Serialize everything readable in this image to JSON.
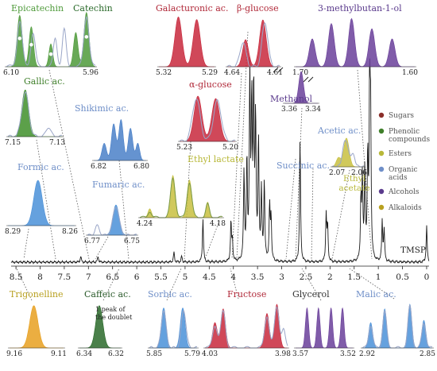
{
  "chart_data": {
    "type": "line",
    "title": "",
    "xlabel": "",
    "ylabel": "",
    "xlim": [
      8.6,
      -0.05
    ],
    "reversed_x": true,
    "x_ticks": [
      "8.5",
      "8",
      "7.5",
      "7",
      "6.5",
      "6",
      "5.5",
      "5",
      "4.5",
      "4",
      "3.5",
      "3",
      "2.5",
      "2",
      "1.5",
      "1",
      "0.5",
      "0"
    ],
    "x_tick_values": [
      8.5,
      8,
      7.5,
      7,
      6.5,
      6,
      5.5,
      5,
      4.5,
      4,
      3.5,
      3,
      2.5,
      2,
      1.5,
      1,
      0.5,
      0
    ],
    "reference_label": "TMSP",
    "legend": {
      "placement": "right",
      "items": [
        {
          "name": "Sugars",
          "color": "#8b2e2a"
        },
        {
          "name": "Phenolic compounds",
          "color": "#3f7f2a"
        },
        {
          "name": "Esters",
          "color": "#b8b838"
        },
        {
          "name": "Organic acids",
          "color": "#6f8fc8"
        },
        {
          "name": "Alcohols",
          "color": "#5a3a8c"
        },
        {
          "name": "Alkaloids",
          "color": "#b8a020"
        }
      ]
    },
    "main_peaks": [
      {
        "ppm": 4.63,
        "h": 0.22
      },
      {
        "ppm": 4.05,
        "h": 0.2
      },
      {
        "ppm": 4.02,
        "h": 0.1
      },
      {
        "ppm": 3.78,
        "h": 0.45
      },
      {
        "ppm": 3.72,
        "h": 0.5
      },
      {
        "ppm": 3.66,
        "h": 0.92
      },
      {
        "ppm": 3.62,
        "h": 0.78
      },
      {
        "ppm": 3.58,
        "h": 0.85
      },
      {
        "ppm": 3.54,
        "h": 0.7
      },
      {
        "ppm": 3.48,
        "h": 0.6
      },
      {
        "ppm": 3.42,
        "h": 0.35
      },
      {
        "ppm": 3.36,
        "h": 0.4
      },
      {
        "ppm": 3.25,
        "h": 0.28
      },
      {
        "ppm": 3.22,
        "h": 0.22
      },
      {
        "ppm": 2.62,
        "h": 0.62
      },
      {
        "ppm": 2.08,
        "h": 0.24
      },
      {
        "ppm": 2.05,
        "h": 0.18
      },
      {
        "ppm": 1.36,
        "h": 0.3
      },
      {
        "ppm": 1.33,
        "h": 0.4
      },
      {
        "ppm": 1.28,
        "h": 0.45
      },
      {
        "ppm": 1.22,
        "h": 0.52
      },
      {
        "ppm": 1.18,
        "h": 0.82
      },
      {
        "ppm": 1.16,
        "h": 0.7
      },
      {
        "ppm": 0.92,
        "h": 0.2
      },
      {
        "ppm": 0.88,
        "h": 0.16
      },
      {
        "ppm": 0.0,
        "h": 0.18
      },
      {
        "ppm": 5.23,
        "h": 0.05
      },
      {
        "ppm": 5.07,
        "h": 0.03
      },
      {
        "ppm": 7.16,
        "h": 0.03
      },
      {
        "ppm": 6.8,
        "h": 0.03
      }
    ],
    "annotations": [
      {
        "text": "Epicatechin",
        "color": "#4e9a3a"
      },
      {
        "text": "Catechin",
        "color": "#2a6a2a"
      },
      {
        "text": "Galacturonic ac.",
        "color": "#b02838"
      },
      {
        "text": "β-glucose",
        "color": "#b02838"
      },
      {
        "text": "3-methylbutan-1-ol",
        "color": "#5a3a8c"
      },
      {
        "text": "Gallic ac.",
        "color": "#3f7f2a"
      },
      {
        "text": "Shikimic ac.",
        "color": "#6f8fc8"
      },
      {
        "text": "α-glucose",
        "color": "#b02838"
      },
      {
        "text": "Methanol",
        "color": "#5a3a8c"
      },
      {
        "text": "Acetic ac.",
        "color": "#6f8fc8"
      },
      {
        "text": "Formic ac.",
        "color": "#6f8fc8"
      },
      {
        "text": "Fumaric ac.",
        "color": "#6f8fc8"
      },
      {
        "text": "Ethyl lactate",
        "color": "#b8b838"
      },
      {
        "text": "Succinic ac.",
        "color": "#6f8fc8"
      },
      {
        "text": "Ethyl acetate",
        "color": "#b8b838"
      },
      {
        "text": "Trigonelline",
        "color": "#b8a020"
      },
      {
        "text": "Caffeic ac.",
        "color": "#2a5a2a"
      },
      {
        "text": "Sorbic ac.",
        "color": "#6f8fc8"
      },
      {
        "text": "Fructose",
        "color": "#b02838"
      },
      {
        "text": "Glycerol",
        "color": "#333333"
      },
      {
        "text": "Malic ac.",
        "color": "#6f8fc8"
      },
      {
        "text": "1 peak of the doublet",
        "color": "#222222"
      }
    ],
    "insets": [
      {
        "name": "catechin-inset",
        "range": [
          "6.10",
          "5.96"
        ],
        "color": "#4e9a3a"
      },
      {
        "name": "galacturonic-inset",
        "range": [
          "5.32",
          "5.29"
        ],
        "color": "#c8283c"
      },
      {
        "name": "beta-glucose-inset",
        "range": [
          "4.64",
          "4.61"
        ],
        "color": "#c8283c"
      },
      {
        "name": "methylbutanol-inset",
        "range": [
          "1.70",
          "1.60"
        ],
        "color": "#6a3f9a"
      },
      {
        "name": "gallic-inset",
        "range": [
          "7.15",
          "7.13"
        ],
        "color": "#3f8f2a"
      },
      {
        "name": "shikimic-inset",
        "range": [
          "6.82",
          "6.80"
        ],
        "color": "#4a80c8"
      },
      {
        "name": "alpha-glucose-inset",
        "range": [
          "5.23",
          "5.20"
        ],
        "color": "#c8283c"
      },
      {
        "name": "methanol-inset",
        "range": [
          "3.36",
          "3.34"
        ],
        "color": "#6a3f9a"
      },
      {
        "name": "acetic-inset",
        "range": [
          "2.07",
          "2.06"
        ],
        "color": "#c8c040"
      },
      {
        "name": "formic-inset",
        "range": [
          "8.29",
          "8.26"
        ],
        "color": "#4a90d8"
      },
      {
        "name": "fumaric-inset",
        "range": [
          "6.77",
          "6.75"
        ],
        "color": "#4a90d8"
      },
      {
        "name": "ethyl-lactate-inset",
        "range": [
          "4.24",
          "4.18"
        ],
        "color": "#c8c040"
      },
      {
        "name": "trigonelline-inset",
        "range": [
          "9.16",
          "9.11"
        ],
        "color": "#e8a020"
      },
      {
        "name": "caffeic-inset",
        "range": [
          "6.34",
          "6.32"
        ],
        "color": "#2a6a2a"
      },
      {
        "name": "sorbic-inset",
        "range": [
          "5.85",
          "5.79"
        ],
        "color": "#4a90d8"
      },
      {
        "name": "fructose-inset",
        "range": [
          "4.03",
          "3.98"
        ],
        "color": "#c8283c"
      },
      {
        "name": "glycerol-inset",
        "range": [
          "3.57",
          "3.52"
        ],
        "color": "#6a3f9a"
      },
      {
        "name": "malic-inset",
        "range": [
          "2.92",
          "2.85"
        ],
        "color": "#4a90d8"
      }
    ]
  }
}
